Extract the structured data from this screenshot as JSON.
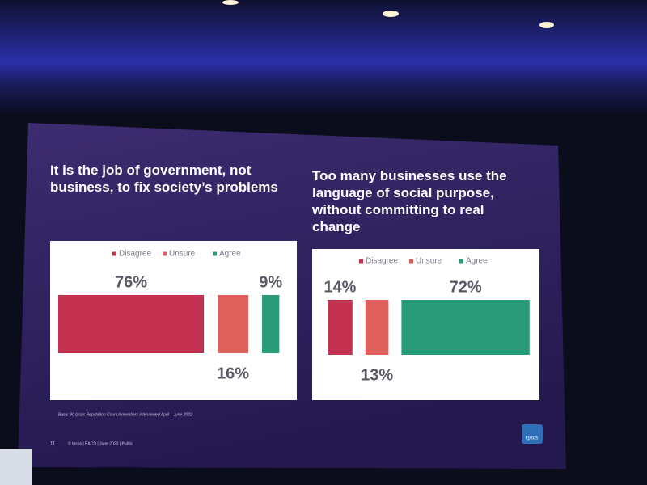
{
  "chart_data": [
    {
      "type": "bar",
      "orientation": "horizontal",
      "title": "It is the job of government, not business, to fix society’s problems",
      "categories": [
        "Disagree",
        "Unsure",
        "Agree"
      ],
      "values": [
        76,
        16,
        9
      ],
      "value_labels": [
        "76%",
        "16%",
        "9%"
      ],
      "colors": [
        "#c4304f",
        "#df5f5c",
        "#2a9b79"
      ]
    },
    {
      "type": "bar",
      "orientation": "horizontal",
      "title": "Too many businesses use the language of social purpose, without committing to real change",
      "categories": [
        "Disagree",
        "Unsure",
        "Agree"
      ],
      "values": [
        14,
        13,
        72
      ],
      "value_labels": [
        "14%",
        "13%",
        "72%"
      ],
      "colors": [
        "#c4304f",
        "#df5f5c",
        "#2a9b79"
      ]
    }
  ],
  "slide": {
    "footnote": "Base: 90 Ipsos Reputation Council members interviewed April – June 2022",
    "page_number": "11",
    "footer": "© Ipsos | EACD | June 2023 | Public",
    "logo": "Ipsos"
  }
}
